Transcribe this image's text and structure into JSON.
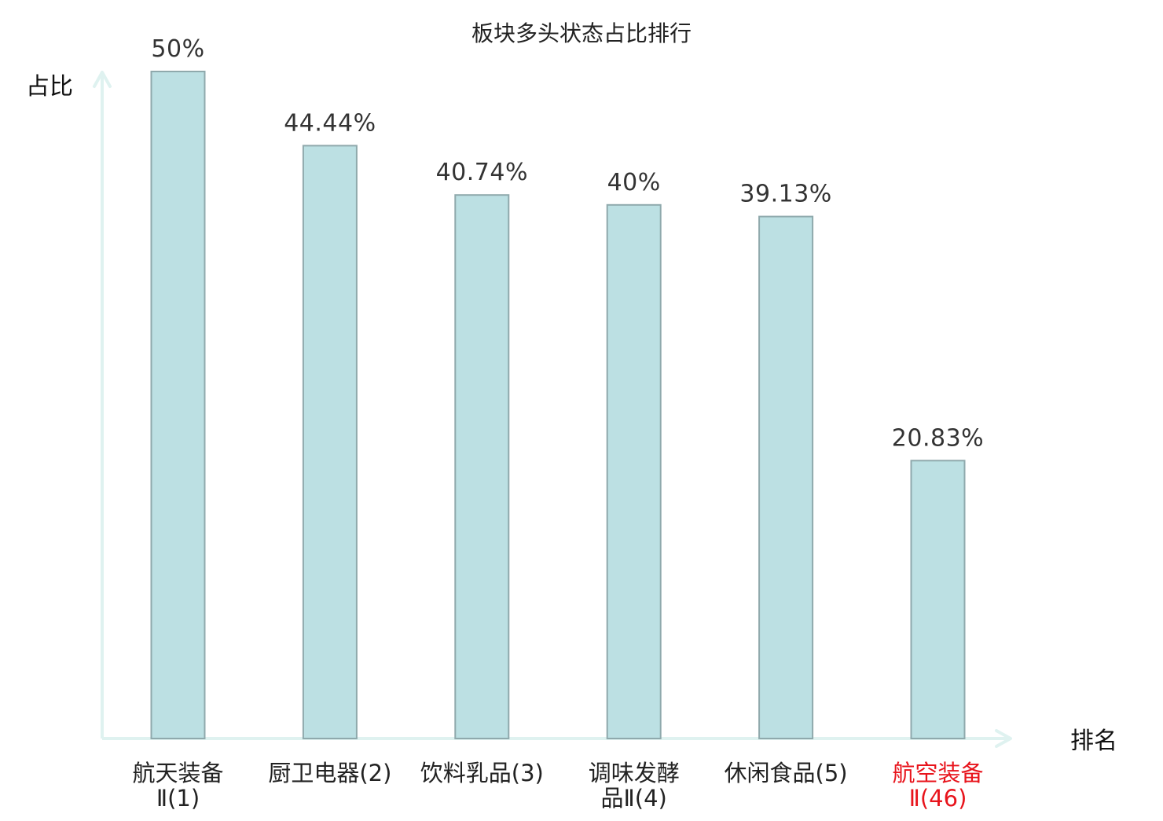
{
  "chart_data": {
    "type": "bar",
    "title": "板块多头状态占比排行",
    "ylabel": "占比",
    "xlabel": "排名",
    "ylim": [
      0,
      50
    ],
    "grid": false,
    "categories": [
      {
        "name": "航天装备Ⅱ",
        "rank": "(1)",
        "lines": [
          "航天装备",
          "Ⅱ(1)"
        ],
        "highlight": false
      },
      {
        "name": "厨卫电器",
        "rank": "(2)",
        "lines": [
          "厨卫电器(2)"
        ],
        "highlight": false
      },
      {
        "name": "饮料乳品",
        "rank": "(3)",
        "lines": [
          "饮料乳品(3)"
        ],
        "highlight": false
      },
      {
        "name": "调味发酵品Ⅱ",
        "rank": "(4)",
        "lines": [
          "调味发酵",
          "品Ⅱ(4)"
        ],
        "highlight": false
      },
      {
        "name": "休闲食品",
        "rank": "(5)",
        "lines": [
          "休闲食品(5)"
        ],
        "highlight": false
      },
      {
        "name": "航空装备Ⅱ",
        "rank": "(46)",
        "lines": [
          "航空装备",
          "Ⅱ(46)"
        ],
        "highlight": true
      }
    ],
    "values": [
      50,
      44.44,
      40.74,
      40,
      39.13,
      20.83
    ],
    "data_labels": [
      "50%",
      "44.44%",
      "40.74%",
      "40%",
      "39.13%",
      "20.83%"
    ]
  },
  "colors": {
    "bar_fill": "#bce0e3",
    "bar_stroke": "#8fa9ac",
    "axis": "#dff2f0",
    "text": "#222222",
    "highlight_text": "#e8141c"
  }
}
